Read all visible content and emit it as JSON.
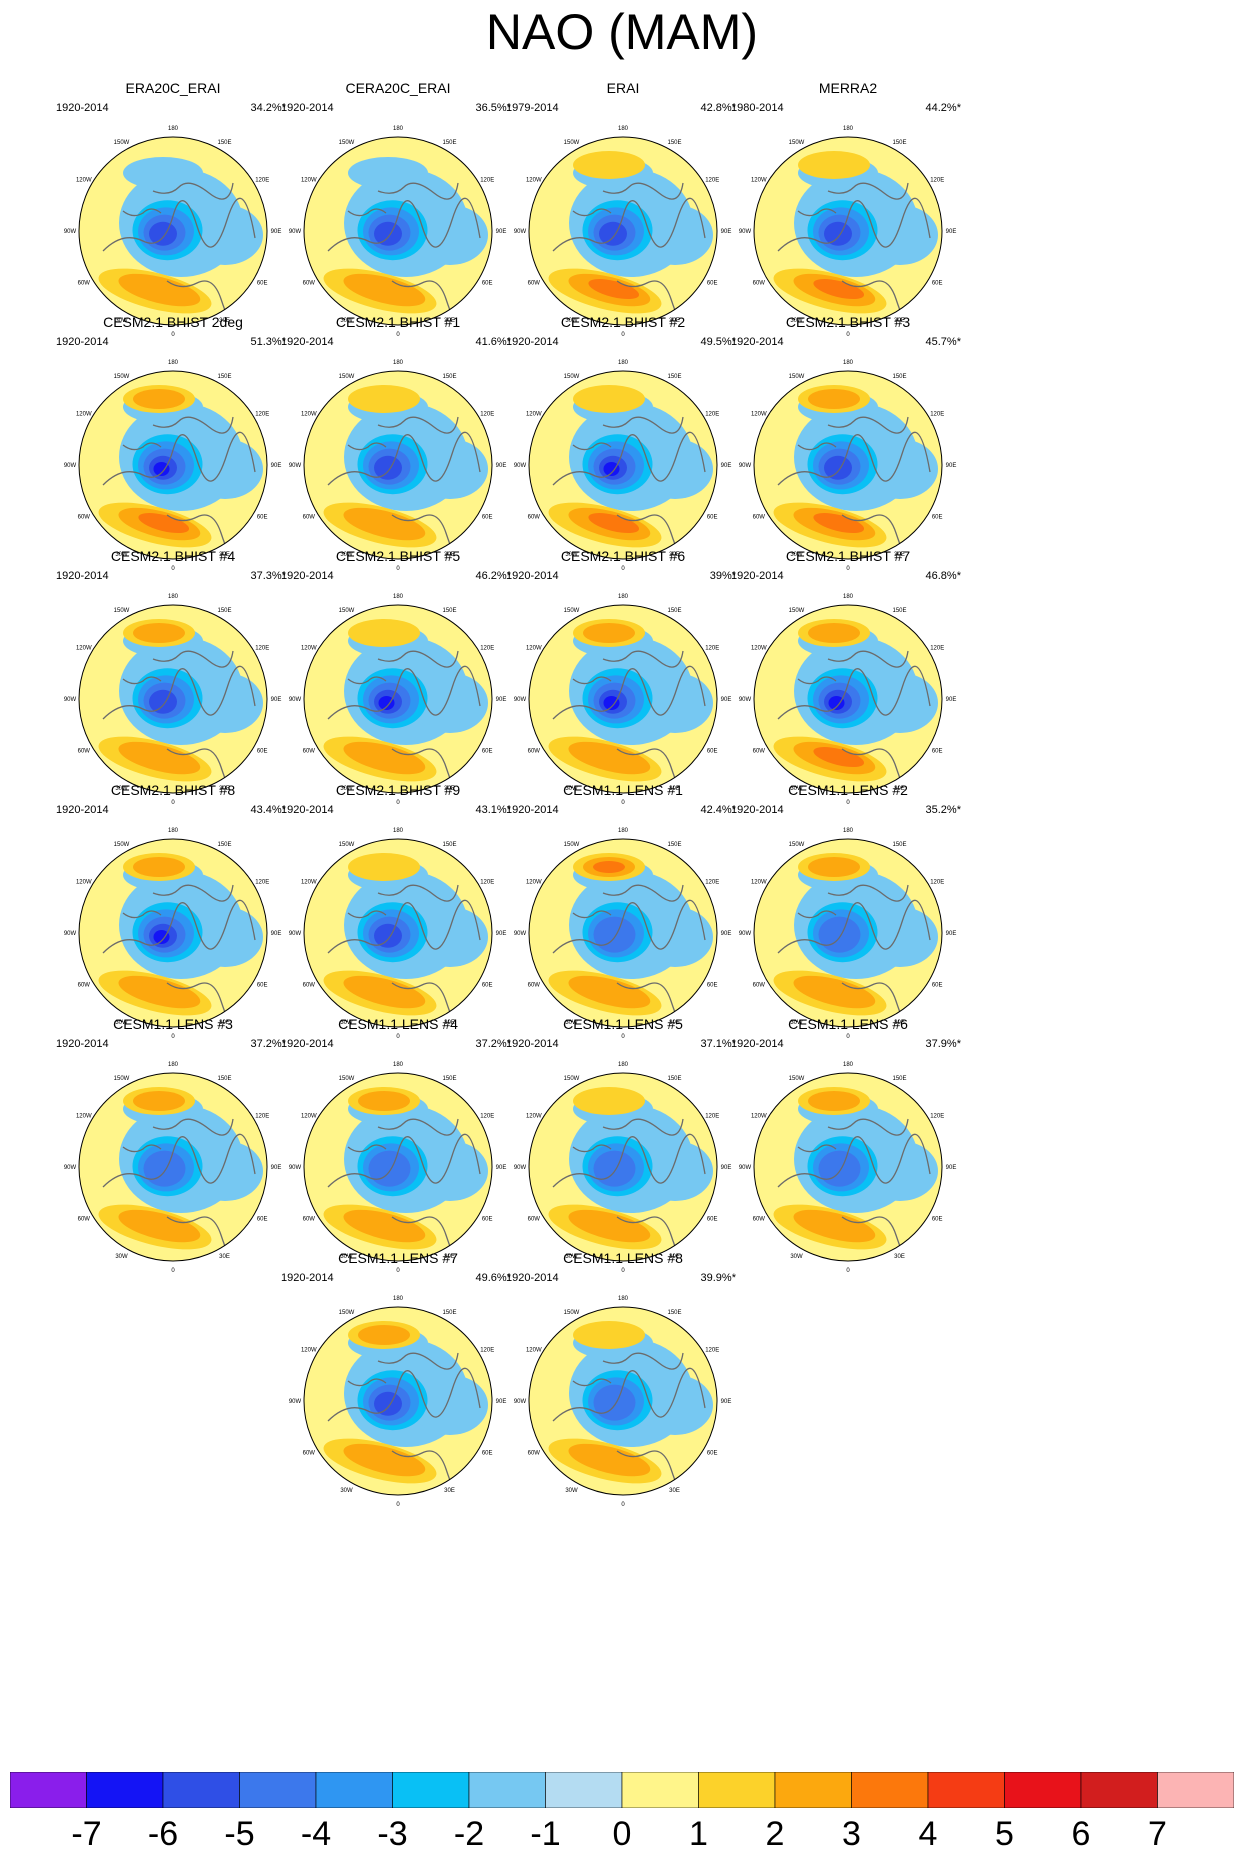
{
  "title": "NAO (MAM)",
  "panel_common": {
    "lon_labels": [
      "180",
      "150E",
      "120E",
      "90E",
      "60E",
      "30E",
      "0",
      "30W",
      "60W",
      "90W",
      "120W",
      "150W"
    ],
    "colors": {
      "coast": "#6b6b6b",
      "frame": "#000000"
    }
  },
  "panels": [
    {
      "title": "ERA20C_ERAI",
      "years": "1920-2014",
      "pct": "34.2%*",
      "pct_value": 34.2,
      "neg_level": -5,
      "pos_level": 2,
      "pac_level": 0
    },
    {
      "title": "CERA20C_ERAI",
      "years": "1920-2014",
      "pct": "36.5%*",
      "pct_value": 36.5,
      "neg_level": -5,
      "pos_level": 2,
      "pac_level": 0
    },
    {
      "title": "ERAI",
      "years": "1979-2014",
      "pct": "42.8%*",
      "pct_value": 42.8,
      "neg_level": -5,
      "pos_level": 3,
      "pac_level": 1
    },
    {
      "title": "MERRA2",
      "years": "1980-2014",
      "pct": "44.2%*",
      "pct_value": 44.2,
      "neg_level": -5,
      "pos_level": 3,
      "pac_level": 1
    },
    {
      "title": "CESM2.1 BHIST 2deg",
      "years": "1920-2014",
      "pct": "51.3%*",
      "pct_value": 51.3,
      "neg_level": -6,
      "pos_level": 3,
      "pac_level": 2
    },
    {
      "title": "CESM2.1 BHIST #1",
      "years": "1920-2014",
      "pct": "41.6%*",
      "pct_value": 41.6,
      "neg_level": -5,
      "pos_level": 2,
      "pac_level": 1
    },
    {
      "title": "CESM2.1 BHIST #2",
      "years": "1920-2014",
      "pct": "49.5%*",
      "pct_value": 49.5,
      "neg_level": -6,
      "pos_level": 3,
      "pac_level": 1
    },
    {
      "title": "CESM2.1 BHIST #3",
      "years": "1920-2014",
      "pct": "45.7%*",
      "pct_value": 45.7,
      "neg_level": -5,
      "pos_level": 3,
      "pac_level": 2
    },
    {
      "title": "CESM2.1 BHIST #4",
      "years": "1920-2014",
      "pct": "37.3%*",
      "pct_value": 37.3,
      "neg_level": -5,
      "pos_level": 2,
      "pac_level": 2
    },
    {
      "title": "CESM2.1 BHIST #5",
      "years": "1920-2014",
      "pct": "46.2%*",
      "pct_value": 46.2,
      "neg_level": -6,
      "pos_level": 2,
      "pac_level": 1
    },
    {
      "title": "CESM2.1 BHIST #6",
      "years": "1920-2014",
      "pct": "39%*",
      "pct_value": 39,
      "neg_level": -6,
      "pos_level": 2,
      "pac_level": 2
    },
    {
      "title": "CESM2.1 BHIST #7",
      "years": "1920-2014",
      "pct": "46.8%*",
      "pct_value": 46.8,
      "neg_level": -6,
      "pos_level": 3,
      "pac_level": 2
    },
    {
      "title": "CESM2.1 BHIST #8",
      "years": "1920-2014",
      "pct": "43.4%*",
      "pct_value": 43.4,
      "neg_level": -6,
      "pos_level": 2,
      "pac_level": 2
    },
    {
      "title": "CESM2.1 BHIST #9",
      "years": "1920-2014",
      "pct": "43.1%*",
      "pct_value": 43.1,
      "neg_level": -5,
      "pos_level": 2,
      "pac_level": 1
    },
    {
      "title": "CESM1.1 LENS #1",
      "years": "1920-2014",
      "pct": "42.4%*",
      "pct_value": 42.4,
      "neg_level": -4,
      "pos_level": 2,
      "pac_level": 3
    },
    {
      "title": "CESM1.1 LENS #2",
      "years": "1920-2014",
      "pct": "35.2%*",
      "pct_value": 35.2,
      "neg_level": -4,
      "pos_level": 2,
      "pac_level": 2
    },
    {
      "title": "CESM1.1 LENS #3",
      "years": "1920-2014",
      "pct": "37.2%*",
      "pct_value": 37.2,
      "neg_level": -4,
      "pos_level": 2,
      "pac_level": 2
    },
    {
      "title": "CESM1.1 LENS #4",
      "years": "1920-2014",
      "pct": "37.2%*",
      "pct_value": 37.2,
      "neg_level": -4,
      "pos_level": 2,
      "pac_level": 2
    },
    {
      "title": "CESM1.1 LENS #5",
      "years": "1920-2014",
      "pct": "37.1%*",
      "pct_value": 37.1,
      "neg_level": -4,
      "pos_level": 2,
      "pac_level": 1
    },
    {
      "title": "CESM1.1 LENS #6",
      "years": "1920-2014",
      "pct": "37.9%*",
      "pct_value": 37.9,
      "neg_level": -4,
      "pos_level": 2,
      "pac_level": 2
    },
    {
      "title": "CESM1.1 LENS #7",
      "years": "1920-2014",
      "pct": "49.6%*",
      "pct_value": 49.6,
      "neg_level": -5,
      "pos_level": 2,
      "pac_level": 2
    },
    {
      "title": "CESM1.1 LENS #8",
      "years": "1920-2014",
      "pct": "39.9%*",
      "pct_value": 39.9,
      "neg_level": -4,
      "pos_level": 2,
      "pac_level": 1
    }
  ],
  "colorbar": {
    "labels": [
      "-7",
      "-6",
      "-5",
      "-4",
      "-3",
      "-2",
      "-1",
      "0",
      "1",
      "2",
      "3",
      "4",
      "5",
      "6",
      "7"
    ],
    "colors": [
      "#8a1eeb",
      "#1414f5",
      "#2f4fe6",
      "#3c78ec",
      "#2f96f2",
      "#09c0f5",
      "#76c8f2",
      "#b4dcf2",
      "#fff58a",
      "#fcd22a",
      "#fca80e",
      "#fc780c",
      "#f53c14",
      "#e8121a",
      "#d21e1e",
      "#fcb4b4"
    ]
  }
}
